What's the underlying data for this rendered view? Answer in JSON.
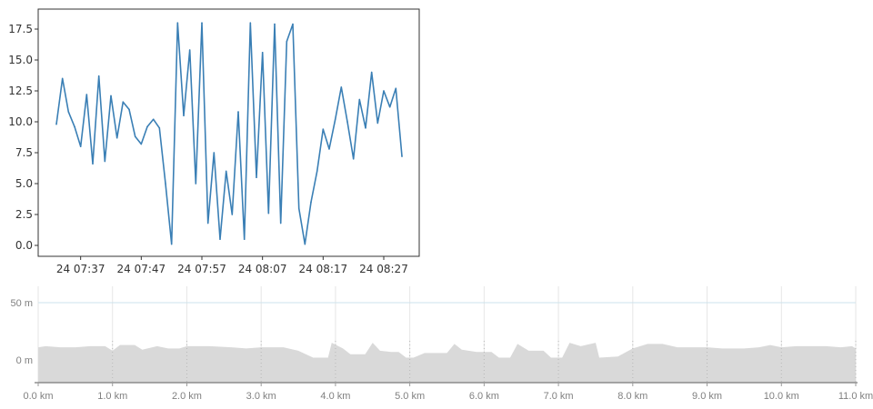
{
  "chart_data": [
    {
      "type": "line",
      "title": "",
      "xlabel": "",
      "ylabel": "",
      "x_range": [
        "24 07:33",
        "24 08:30"
      ],
      "ylim": [
        -1,
        18.5
      ],
      "grid": false,
      "xticks": [
        "24 07:37",
        "24 07:47",
        "24 07:57",
        "24 08:07",
        "24 08:17",
        "24 08:27"
      ],
      "yticks": [
        "0.0",
        "2.5",
        "5.0",
        "7.5",
        "10.0",
        "12.5",
        "15.0",
        "17.5"
      ],
      "colors": {
        "line": "#3a7fb5",
        "axes": "#333333"
      },
      "series": [
        {
          "points": [
            [
              "24 07:33",
              9.8
            ],
            [
              "24 07:34",
              13.5
            ],
            [
              "24 07:35",
              10.8
            ],
            [
              "24 07:36",
              9.6
            ],
            [
              "24 07:37",
              8.0
            ],
            [
              "24 07:38",
              12.2
            ],
            [
              "24 07:39",
              6.6
            ],
            [
              "24 07:40",
              13.7
            ],
            [
              "24 07:41",
              6.8
            ],
            [
              "24 07:42",
              12.1
            ],
            [
              "24 07:43",
              8.7
            ],
            [
              "24 07:44",
              11.6
            ],
            [
              "24 07:45",
              11.0
            ],
            [
              "24 07:46",
              8.8
            ],
            [
              "24 07:47",
              8.2
            ],
            [
              "24 07:48",
              9.6
            ],
            [
              "24 07:49",
              10.2
            ],
            [
              "24 07:50",
              9.5
            ],
            [
              "24 07:51",
              5.0
            ],
            [
              "24 07:52",
              0.1
            ],
            [
              "24 07:53",
              18.0
            ],
            [
              "24 07:54",
              10.5
            ],
            [
              "24 07:55",
              15.8
            ],
            [
              "24 07:56",
              5.0
            ],
            [
              "24 07:57",
              18.0
            ],
            [
              "24 07:58",
              1.8
            ],
            [
              "24 07:59",
              7.5
            ],
            [
              "24 08:00",
              0.5
            ],
            [
              "24 08:01",
              6.0
            ],
            [
              "24 08:02",
              2.5
            ],
            [
              "24 08:03",
              10.8
            ],
            [
              "24 08:04",
              0.5
            ],
            [
              "24 08:05",
              18.0
            ],
            [
              "24 08:06",
              5.5
            ],
            [
              "24 08:07",
              15.6
            ],
            [
              "24 08:08",
              2.6
            ],
            [
              "24 08:09",
              17.9
            ],
            [
              "24 08:10",
              1.8
            ],
            [
              "24 08:11",
              16.5
            ],
            [
              "24 08:12",
              17.9
            ],
            [
              "24 08:13",
              3.0
            ],
            [
              "24 08:14",
              0.1
            ],
            [
              "24 08:15",
              3.5
            ],
            [
              "24 08:16",
              6.0
            ],
            [
              "24 08:17",
              9.4
            ],
            [
              "24 08:18",
              7.8
            ],
            [
              "24 08:19",
              10.2
            ],
            [
              "24 08:20",
              12.8
            ],
            [
              "24 08:21",
              10.0
            ],
            [
              "24 08:22",
              7.0
            ],
            [
              "24 08:23",
              11.8
            ],
            [
              "24 08:24",
              9.5
            ],
            [
              "24 08:25",
              14.0
            ],
            [
              "24 08:26",
              9.9
            ],
            [
              "24 08:27",
              12.5
            ],
            [
              "24 08:28",
              11.2
            ],
            [
              "24 08:29",
              12.7
            ],
            [
              "24 08:30",
              7.2
            ]
          ]
        }
      ]
    },
    {
      "type": "area",
      "title": "",
      "xlabel": "",
      "ylabel": "",
      "xlim": [
        0,
        11
      ],
      "ylim": [
        -20,
        65
      ],
      "grid": true,
      "xticks": [
        "0.0 km",
        "1.0 km",
        "2.0 km",
        "3.0 km",
        "4.0 km",
        "5.0 km",
        "6.0 km",
        "7.0 km",
        "8.0 km",
        "9.0 km",
        "10.0 km",
        "11.0 km"
      ],
      "yticks": [
        "0 m",
        "50 m"
      ],
      "colors": {
        "fill": "#d9d9d9",
        "grid": "#e6e6e6",
        "reference_line": "#cde3ec",
        "axis_text": "#808080"
      },
      "series": [
        {
          "points": [
            [
              0.0,
              11
            ],
            [
              0.1,
              12
            ],
            [
              0.3,
              11
            ],
            [
              0.5,
              11
            ],
            [
              0.7,
              12
            ],
            [
              0.9,
              12
            ],
            [
              1.0,
              8
            ],
            [
              1.1,
              13
            ],
            [
              1.3,
              13
            ],
            [
              1.4,
              9
            ],
            [
              1.6,
              12
            ],
            [
              1.75,
              10
            ],
            [
              1.9,
              10
            ],
            [
              2.0,
              12
            ],
            [
              2.3,
              12
            ],
            [
              2.6,
              11
            ],
            [
              2.8,
              10
            ],
            [
              3.0,
              11
            ],
            [
              3.3,
              11
            ],
            [
              3.5,
              8
            ],
            [
              3.7,
              2
            ],
            [
              3.9,
              2
            ],
            [
              3.95,
              15
            ],
            [
              4.1,
              10
            ],
            [
              4.2,
              5
            ],
            [
              4.4,
              5
            ],
            [
              4.5,
              15
            ],
            [
              4.6,
              8
            ],
            [
              4.75,
              7
            ],
            [
              4.85,
              7
            ],
            [
              4.95,
              2
            ],
            [
              5.05,
              2
            ],
            [
              5.2,
              6
            ],
            [
              5.5,
              6
            ],
            [
              5.6,
              14
            ],
            [
              5.7,
              9
            ],
            [
              5.9,
              7
            ],
            [
              6.1,
              7
            ],
            [
              6.2,
              2
            ],
            [
              6.35,
              2
            ],
            [
              6.45,
              14
            ],
            [
              6.6,
              8
            ],
            [
              6.8,
              8
            ],
            [
              6.9,
              2
            ],
            [
              7.05,
              2
            ],
            [
              7.15,
              15
            ],
            [
              7.3,
              12
            ],
            [
              7.5,
              15
            ],
            [
              7.55,
              2
            ],
            [
              7.8,
              3
            ],
            [
              8.0,
              10
            ],
            [
              8.2,
              14
            ],
            [
              8.4,
              14
            ],
            [
              8.6,
              11
            ],
            [
              8.8,
              11
            ],
            [
              9.0,
              11
            ],
            [
              9.2,
              10
            ],
            [
              9.5,
              10
            ],
            [
              9.7,
              11
            ],
            [
              9.85,
              13
            ],
            [
              10.0,
              11
            ],
            [
              10.2,
              12
            ],
            [
              10.4,
              12
            ],
            [
              10.6,
              12
            ],
            [
              10.8,
              11
            ],
            [
              10.95,
              12
            ],
            [
              11.0,
              10
            ]
          ]
        }
      ]
    }
  ]
}
